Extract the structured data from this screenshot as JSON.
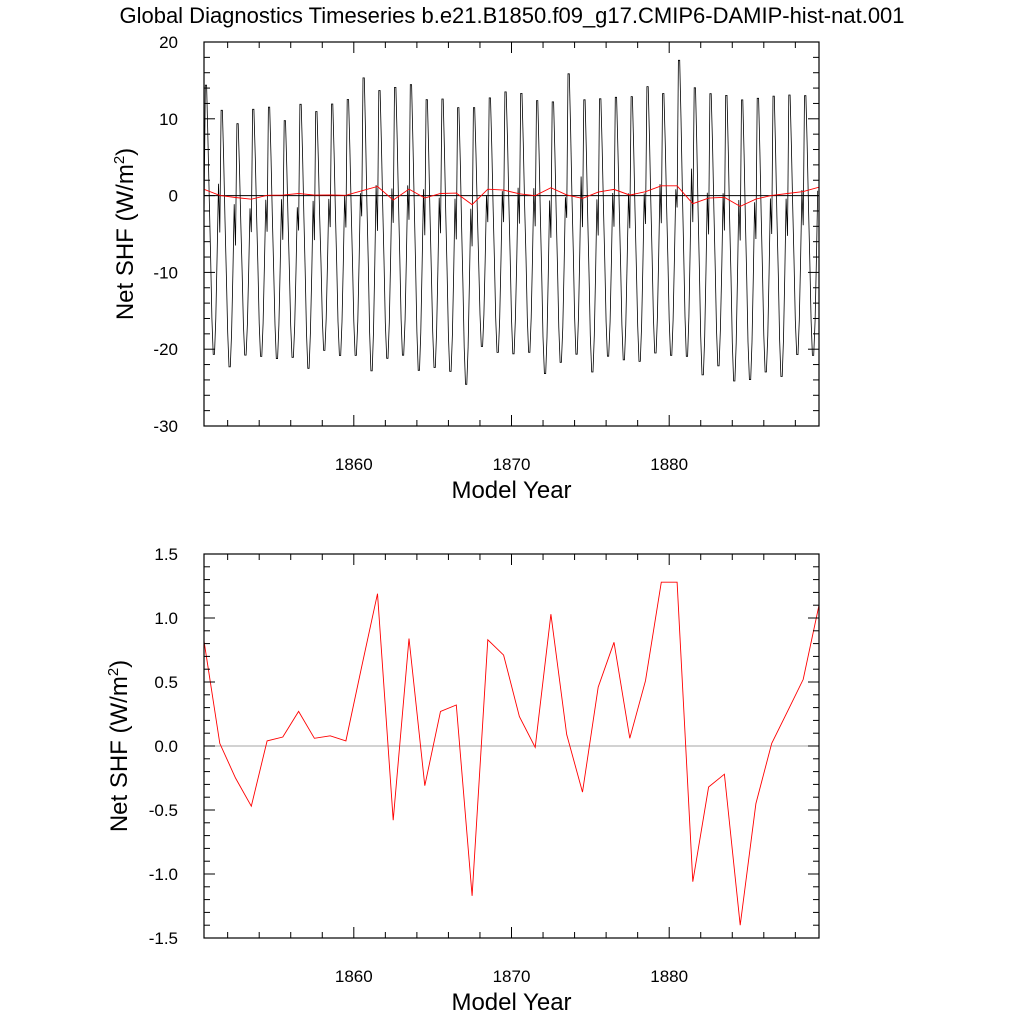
{
  "title": "Global Diagnostics Timeseries b.e21.B1850.f09_g17.CMIP6-DAMIP-hist-nat.001",
  "colors": {
    "monthly": "#000000",
    "annual": "#ff0000",
    "zero_line_top": "#000000",
    "zero_line_bottom": "#888888"
  },
  "chart_data": [
    {
      "type": "line",
      "title": "Global Diagnostics Timeseries b.e21.B1850.f09_g17.CMIP6-DAMIP-hist-nat.001",
      "xlabel": "Model Year",
      "ylabel": "Net SHF (W/m²)",
      "ylabel_main": "Net SHF (W/m",
      "ylabel_sup": "2",
      "ylabel_end": ")",
      "xlim": [
        1850.5,
        1889.5
      ],
      "ylim": [
        -30,
        20
      ],
      "xticks": [
        "1860",
        "1870",
        "1880"
      ],
      "xtick_values": [
        1860,
        1870,
        1880
      ],
      "yticks": [
        "20",
        "10",
        "0",
        "-10",
        "-20",
        "-30"
      ],
      "ytick_values": [
        20,
        10,
        0,
        -10,
        -20,
        -30
      ],
      "zero_line": true,
      "series": [
        {
          "kind": "monthly",
          "start_year": 1850.5,
          "max": [
            15.0,
            11.7,
            9.9,
            11.8,
            12.1,
            10.3,
            12.5,
            11.5,
            12.5,
            13.1,
            16.0,
            14.3,
            14.7,
            15.1,
            13.1,
            13.2,
            12.1,
            12.0,
            13.3,
            14.1,
            13.9,
            13.0,
            12.8,
            16.5,
            13.1,
            13.2,
            13.4,
            13.5,
            14.8,
            13.9,
            18.3,
            14.7,
            13.9,
            13.7,
            13.1,
            13.3,
            13.6,
            13.7,
            13.6
          ],
          "min": [
            -21.3,
            -22.9,
            -21.3,
            -21.5,
            -21.8,
            -21.6,
            -23.1,
            -20.7,
            -21.4,
            -21.4,
            -23.5,
            -21.8,
            -21.4,
            -23.4,
            -23.0,
            -23.5,
            -25.2,
            -20.2,
            -21.0,
            -21.2,
            -21.0,
            -23.8,
            -22.3,
            -21.3,
            -23.6,
            -21.5,
            -22.0,
            -22.2,
            -21.1,
            -21.4,
            -21.6,
            -24.0,
            -22.8,
            -24.8,
            -24.6,
            -23.6,
            -24.2,
            -21.3,
            -21.4
          ]
        },
        {
          "kind": "annual",
          "x": [
            1850.5,
            1851.5,
            1852.5,
            1853.5,
            1854.5,
            1855.5,
            1856.5,
            1857.5,
            1858.5,
            1859.5,
            1860.5,
            1861.5,
            1862.5,
            1863.5,
            1864.5,
            1865.5,
            1866.5,
            1867.5,
            1868.5,
            1869.5,
            1870.5,
            1871.5,
            1872.5,
            1873.5,
            1874.5,
            1875.5,
            1876.5,
            1877.5,
            1878.5,
            1879.5,
            1880.5,
            1881.5,
            1882.5,
            1883.5,
            1884.5,
            1885.5,
            1886.5,
            1887.5,
            1888.5,
            1889.5
          ],
          "values": [
            0.82,
            0.02,
            -0.25,
            -0.47,
            0.04,
            0.07,
            0.27,
            0.06,
            0.08,
            0.04,
            0.62,
            1.19,
            -0.58,
            0.84,
            -0.31,
            0.27,
            0.32,
            -1.17,
            0.83,
            0.71,
            0.23,
            -0.01,
            1.03,
            0.09,
            -0.36,
            0.46,
            0.81,
            0.06,
            0.51,
            1.28,
            1.28,
            -1.06,
            -0.32,
            -0.22,
            -1.4,
            -0.45,
            0.02,
            0.27,
            0.52,
            1.1
          ]
        }
      ]
    },
    {
      "type": "line",
      "xlabel": "Model Year",
      "ylabel": "Net SHF (W/m²)",
      "ylabel_main": "Net SHF (W/m",
      "ylabel_sup": "2",
      "ylabel_end": ")",
      "xlim": [
        1850.5,
        1889.5
      ],
      "ylim": [
        -1.5,
        1.5
      ],
      "xticks": [
        "1860",
        "1870",
        "1880"
      ],
      "xtick_values": [
        1860,
        1870,
        1880
      ],
      "yticks": [
        "1.5",
        "1.0",
        "0.5",
        "0.0",
        "-0.5",
        "-1.0",
        "-1.5"
      ],
      "ytick_values": [
        1.5,
        1.0,
        0.5,
        0.0,
        -0.5,
        -1.0,
        -1.5
      ],
      "zero_line": true,
      "series": [
        {
          "kind": "annual",
          "x": [
            1850.5,
            1851.5,
            1852.5,
            1853.5,
            1854.5,
            1855.5,
            1856.5,
            1857.5,
            1858.5,
            1859.5,
            1860.5,
            1861.5,
            1862.5,
            1863.5,
            1864.5,
            1865.5,
            1866.5,
            1867.5,
            1868.5,
            1869.5,
            1870.5,
            1871.5,
            1872.5,
            1873.5,
            1874.5,
            1875.5,
            1876.5,
            1877.5,
            1878.5,
            1879.5,
            1880.5,
            1881.5,
            1882.5,
            1883.5,
            1884.5,
            1885.5,
            1886.5,
            1887.5,
            1888.5,
            1889.5
          ],
          "values": [
            0.82,
            0.02,
            -0.25,
            -0.47,
            0.04,
            0.07,
            0.27,
            0.06,
            0.08,
            0.04,
            0.62,
            1.19,
            -0.58,
            0.84,
            -0.31,
            0.27,
            0.32,
            -1.17,
            0.83,
            0.71,
            0.23,
            -0.01,
            1.03,
            0.09,
            -0.36,
            0.46,
            0.81,
            0.06,
            0.51,
            1.28,
            1.28,
            -1.06,
            -0.32,
            -0.22,
            -1.4,
            -0.45,
            0.02,
            0.27,
            0.52,
            1.1
          ]
        }
      ]
    }
  ]
}
